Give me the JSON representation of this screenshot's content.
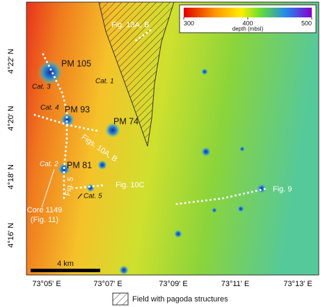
{
  "colorbar": {
    "label": "depth (mbsl)",
    "lim": [
      300,
      500
    ],
    "ticks": [
      300,
      400,
      500
    ]
  },
  "y_axis_labels": [
    "4°22' N",
    "4°20' N",
    "4°18' N",
    "4°16' N"
  ],
  "x_axis_labels": [
    "73°05' E",
    "73°07' E",
    "73°09' E",
    "73°11' E",
    "73°13' E"
  ],
  "sites": [
    "PM 105",
    "PM 93",
    "PM 74",
    "PM 81"
  ],
  "categories": [
    "Cat. 1",
    "Cat. 2",
    "Cat. 3",
    "Cat. 4",
    "Cat. 5"
  ],
  "figure_refs": [
    "Fig. 13A, B",
    "Figs. 10A, B",
    "Fig. 5",
    "Fig. 10C",
    "Fig. 9"
  ],
  "core": [
    "Core 1149",
    "(Fig. 11)"
  ],
  "scale_bar": "4 km",
  "legend": "Field with pagoda structures"
}
